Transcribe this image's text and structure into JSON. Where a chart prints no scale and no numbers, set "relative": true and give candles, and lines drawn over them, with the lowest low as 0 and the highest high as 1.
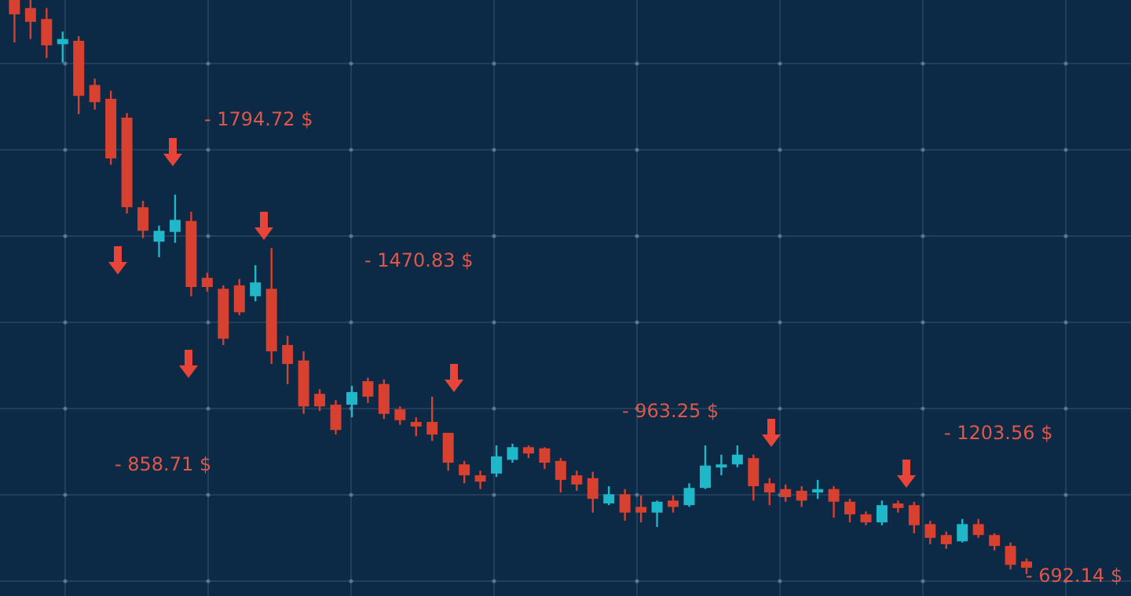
{
  "chart_data": {
    "type": "candlestick",
    "relative": true,
    "grid": true,
    "categories": [
      null,
      null,
      null,
      null,
      null,
      null,
      null,
      null,
      null,
      null,
      null,
      null,
      null,
      null,
      null,
      null,
      null,
      null,
      null,
      null,
      null,
      null,
      null,
      null,
      null,
      null,
      null,
      null,
      null,
      null,
      null,
      null,
      null,
      null,
      null,
      null,
      null,
      null,
      null,
      null,
      null,
      null,
      null,
      null,
      null,
      null,
      null,
      null,
      null,
      null,
      null,
      null,
      null,
      null,
      null,
      null,
      null,
      null,
      null,
      null,
      null,
      null,
      null,
      null
    ],
    "ohlc": [
      [
        1,
        1,
        0.926,
        0.975
      ],
      [
        0.986,
        1,
        0.932,
        0.962
      ],
      [
        0.967,
        0.986,
        0.899,
        0.921
      ],
      [
        0.923,
        0.945,
        0.891,
        0.932
      ],
      [
        0.929,
        0.937,
        0.801,
        0.833
      ],
      [
        0.852,
        0.863,
        0.809,
        0.822
      ],
      [
        0.828,
        0.842,
        0.713,
        0.724
      ],
      [
        0.795,
        0.803,
        0.628,
        0.639
      ],
      [
        0.639,
        0.65,
        0.585,
        0.598
      ],
      [
        0.579,
        0.607,
        0.552,
        0.598
      ],
      [
        0.596,
        0.661,
        0.577,
        0.617
      ],
      [
        0.615,
        0.631,
        0.484,
        0.5
      ],
      [
        0.516,
        0.525,
        0.492,
        0.5
      ],
      [
        0.497,
        0.503,
        0.399,
        0.41
      ],
      [
        0.503,
        0.514,
        0.451,
        0.456
      ],
      [
        0.484,
        0.538,
        0.475,
        0.508
      ],
      [
        0.497,
        0.568,
        0.366,
        0.388
      ],
      [
        0.399,
        0.415,
        0.331,
        0.366
      ],
      [
        0.372,
        0.388,
        0.279,
        0.292
      ],
      [
        0.314,
        0.322,
        0.284,
        0.292
      ],
      [
        0.295,
        0.303,
        0.243,
        0.251
      ],
      [
        0.295,
        0.328,
        0.273,
        0.317
      ],
      [
        0.336,
        0.342,
        0.298,
        0.309
      ],
      [
        0.331,
        0.339,
        0.27,
        0.279
      ],
      [
        0.287,
        0.292,
        0.26,
        0.268
      ],
      [
        0.265,
        0.273,
        0.24,
        0.257
      ],
      [
        0.265,
        0.309,
        0.232,
        0.243
      ],
      [
        0.246,
        0.246,
        0.18,
        0.194
      ],
      [
        0.191,
        0.197,
        0.158,
        0.172
      ],
      [
        0.172,
        0.18,
        0.148,
        0.161
      ],
      [
        0.175,
        0.224,
        0.169,
        0.205
      ],
      [
        0.199,
        0.227,
        0.194,
        0.221
      ],
      [
        0.221,
        0.224,
        0.202,
        0.21
      ],
      [
        0.219,
        0.221,
        0.183,
        0.194
      ],
      [
        0.197,
        0.202,
        0.142,
        0.164
      ],
      [
        0.172,
        0.18,
        0.145,
        0.156
      ],
      [
        0.167,
        0.178,
        0.107,
        0.131
      ],
      [
        0.123,
        0.153,
        0.12,
        0.139
      ],
      [
        0.139,
        0.148,
        0.093,
        0.107
      ],
      [
        0.117,
        0.137,
        0.09,
        0.107
      ],
      [
        0.107,
        0.128,
        0.082,
        0.126
      ],
      [
        0.128,
        0.137,
        0.107,
        0.117
      ],
      [
        0.12,
        0.158,
        0.117,
        0.15
      ],
      [
        0.15,
        0.224,
        0.148,
        0.189
      ],
      [
        0.186,
        0.208,
        0.172,
        0.191
      ],
      [
        0.191,
        0.224,
        0.186,
        0.208
      ],
      [
        0.202,
        0.208,
        0.128,
        0.153
      ],
      [
        0.158,
        0.167,
        0.12,
        0.142
      ],
      [
        0.148,
        0.156,
        0.126,
        0.134
      ],
      [
        0.145,
        0.153,
        0.117,
        0.128
      ],
      [
        0.142,
        0.164,
        0.131,
        0.148
      ],
      [
        0.148,
        0.153,
        0.098,
        0.126
      ],
      [
        0.126,
        0.131,
        0.09,
        0.104
      ],
      [
        0.104,
        0.109,
        0.085,
        0.09
      ],
      [
        0.09,
        0.128,
        0.085,
        0.12
      ],
      [
        0.123,
        0.128,
        0.107,
        0.115
      ],
      [
        0.12,
        0.126,
        0.071,
        0.085
      ],
      [
        0.087,
        0.093,
        0.052,
        0.063
      ],
      [
        0.068,
        0.074,
        0.044,
        0.052
      ],
      [
        0.057,
        0.096,
        0.055,
        0.087
      ],
      [
        0.087,
        0.096,
        0.063,
        0.068
      ],
      [
        0.068,
        0.071,
        0.041,
        0.049
      ],
      [
        0.049,
        0.055,
        0.008,
        0.016
      ],
      [
        0.022,
        0.027,
        0,
        0.011
      ]
    ],
    "annotations": [
      "- 1794.72 $",
      "- 1470.83 $",
      "- 858.71 $",
      "- 963.25 $",
      "- 1203.56 $",
      "- 692.14 $"
    ]
  }
}
